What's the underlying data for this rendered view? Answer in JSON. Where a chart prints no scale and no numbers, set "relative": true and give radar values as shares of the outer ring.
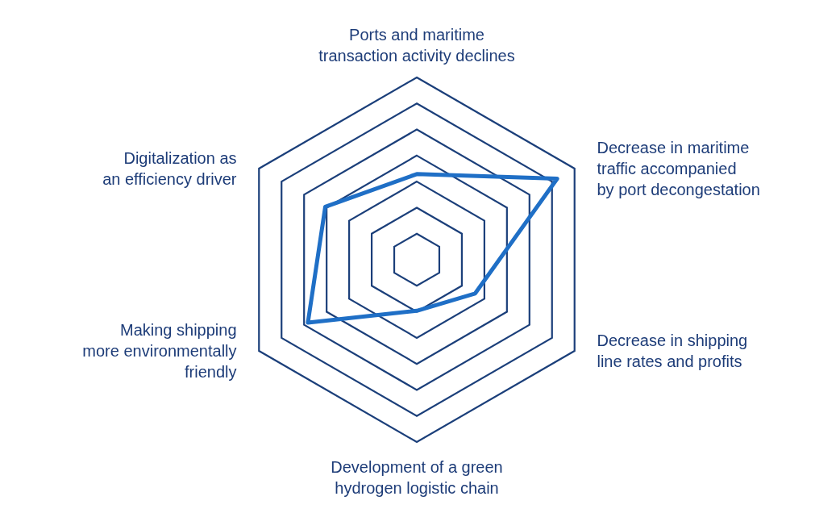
{
  "chart_data": {
    "type": "radar",
    "relative": true,
    "grid": true,
    "categories": [
      "Ports and maritime\ntransaction activity declines",
      "Decrease in maritime\ntraffic accompanied\nby port decongestation",
      "Decrease in shipping\nline rates and profits",
      "Development of a green\nhydrogen logistic chain",
      "Making shipping\nmore environmentally\nfriendly",
      "Digitalization as\nan efficiency driver"
    ],
    "series": [
      {
        "color": "#1f6fc6",
        "values": [
          0.47,
          0.89,
          0.37,
          0.28,
          0.69,
          0.58
        ]
      }
    ]
  }
}
